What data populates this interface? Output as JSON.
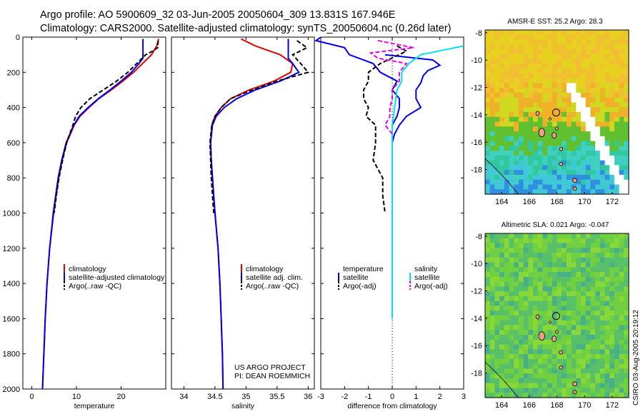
{
  "title_line1": "Argo profile: AO 5900609_32 03-Jun-2005 20050604_309 13.831S 167.946E",
  "title_line2": "Climatology: CARS2000. Satellite-adjusted climatology: synTS_20050604.nc (0.26d later)",
  "credit_line1": "US ARGO PROJECT",
  "credit_line2": "PI: DEAN ROEMMICH",
  "side_stamp": "CSIRO 03-Aug-2005 20:19:12",
  "colors": {
    "climatology": "#e00000",
    "satellite": "#0000ee",
    "argo": "#000000",
    "sal_sat": "#00e0f0",
    "sal_argo": "#ee00ee"
  },
  "chart_data": [
    {
      "type": "line",
      "name": "temperature-profile",
      "xlabel": "temperature",
      "ylabel": "",
      "xlim": [
        -2,
        30
      ],
      "ylim": [
        2000,
        0
      ],
      "xticks": [
        0,
        10,
        20
      ],
      "yticks": [
        0,
        200,
        400,
        600,
        800,
        1000,
        1200,
        1400,
        1600,
        1800,
        2000
      ],
      "legend": [
        "climatology",
        "satellite-adjusted climatology",
        "Argo(..raw -QC)"
      ],
      "series": [
        {
          "name": "climatology",
          "style": "solid",
          "color": "#e00000",
          "depth": [
            10,
            50,
            100,
            150,
            200,
            250,
            300,
            350,
            400,
            450,
            500,
            600,
            700,
            800,
            1000,
            1200,
            1400,
            1600,
            1800,
            2000
          ],
          "value": [
            28.4,
            28.0,
            26.8,
            24.8,
            22.8,
            20.4,
            17.8,
            15.0,
            12.8,
            10.8,
            9.5,
            7.8,
            6.8,
            6.0,
            4.9,
            4.0,
            3.4,
            3.0,
            2.7,
            2.4
          ]
        },
        {
          "name": "satellite-adjusted climatology",
          "style": "solid",
          "color": "#0000ee",
          "depth": [
            10,
            120,
            150,
            200,
            250,
            300,
            350,
            400,
            450,
            500,
            600,
            700,
            800,
            1000,
            1200,
            1400,
            1600,
            1800,
            2000
          ],
          "value": [
            24.9,
            24.9,
            24.0,
            22.3,
            20.0,
            17.5,
            14.9,
            12.6,
            10.6,
            9.4,
            7.7,
            6.7,
            5.9,
            4.8,
            4.0,
            3.4,
            3.0,
            2.7,
            2.4
          ]
        },
        {
          "name": "Argo(..raw -QC)",
          "style": "dashed",
          "color": "#000000",
          "depth": [
            20,
            60,
            80,
            100,
            150,
            200,
            250,
            300,
            350,
            400,
            450,
            500,
            600,
            700,
            800,
            900,
            1000
          ],
          "value": [
            28.3,
            28.2,
            27.0,
            25.5,
            23.5,
            21.5,
            19.0,
            16.0,
            13.0,
            11.0,
            9.8,
            9.2,
            7.8,
            6.9,
            6.1,
            5.5,
            5.0
          ]
        }
      ]
    },
    {
      "type": "line",
      "name": "salinity-profile",
      "xlabel": "salinity",
      "xlim": [
        33.8,
        36.1
      ],
      "ylim": [
        2000,
        0
      ],
      "xticks": [
        34,
        34.5,
        35,
        35.5,
        36
      ],
      "legend": [
        "climatology",
        "satellite adj. clim.",
        "Argo(..raw -QC)"
      ],
      "series": [
        {
          "name": "climatology",
          "style": "solid",
          "color": "#e00000",
          "depth": [
            10,
            50,
            100,
            150,
            200,
            250,
            300,
            350,
            400,
            450,
            500,
            600,
            700,
            800,
            1000,
            1200,
            1400,
            1600,
            1800,
            2000
          ],
          "value": [
            34.92,
            35.15,
            35.55,
            35.75,
            35.72,
            35.45,
            35.05,
            34.75,
            34.6,
            34.5,
            34.45,
            34.43,
            34.44,
            34.46,
            34.5,
            34.55,
            34.58,
            34.6,
            34.62,
            34.63
          ]
        },
        {
          "name": "satellite adj. clim.",
          "style": "solid",
          "color": "#0000ee",
          "depth": [
            10,
            120,
            150,
            200,
            250,
            300,
            350,
            400,
            450,
            500,
            600,
            700,
            800,
            1000,
            1200,
            1400,
            1600,
            1800,
            2000
          ],
          "value": [
            35.68,
            35.68,
            35.75,
            35.85,
            35.55,
            35.15,
            34.85,
            34.65,
            34.52,
            34.46,
            34.43,
            34.44,
            34.46,
            34.5,
            34.55,
            34.58,
            34.6,
            34.62,
            34.63
          ]
        },
        {
          "name": "Argo(..raw -QC)",
          "style": "dashed",
          "color": "#000000",
          "depth": [
            20,
            60,
            100,
            150,
            200,
            250,
            300,
            350,
            400,
            450,
            500,
            600,
            700,
            800,
            900,
            1000
          ],
          "value": [
            35.82,
            35.98,
            35.75,
            35.88,
            36.0,
            35.5,
            35.1,
            34.75,
            34.6,
            34.5,
            34.45,
            34.42,
            34.43,
            34.44,
            34.46,
            34.48
          ]
        }
      ]
    },
    {
      "type": "line",
      "name": "difference-profile",
      "xlabel": "difference from climatology",
      "xlim": [
        -3,
        3
      ],
      "ylim": [
        2000,
        0
      ],
      "xticks": [
        -3,
        -2,
        -1,
        0,
        1,
        2,
        3
      ],
      "legend": [
        "temperature",
        "satellite",
        "Argo(-adj)",
        "salinity",
        "satellite",
        "Argo(-adj)"
      ],
      "series": [
        {
          "name": "temperature satellite",
          "style": "solid",
          "color": "#0000ee",
          "depth": [
            0,
            20,
            60,
            100,
            150,
            200,
            250,
            300,
            350,
            400,
            450,
            500,
            600,
            800,
            1000,
            1200,
            1400,
            1600
          ],
          "value": [
            -3.0,
            -3.2,
            -2.0,
            -1.8,
            -0.8,
            -0.5,
            0.2,
            0.0,
            0.3,
            0.3,
            0.2,
            0.0,
            0.0,
            0.0,
            0.0,
            0.0,
            0.0,
            0.0
          ]
        },
        {
          "name": "temperature satellite upper",
          "style": "solid",
          "color": "#0000ee",
          "depth": [
            100,
            130,
            160,
            190,
            220,
            260,
            300,
            350,
            400,
            450,
            500,
            550,
            600
          ],
          "value": [
            -0.3,
            1.7,
            2.0,
            1.5,
            1.3,
            1.2,
            1.0,
            1.0,
            1.2,
            0.6,
            0.3,
            0.1,
            0.0
          ]
        },
        {
          "name": "temperature Argo(-adj)",
          "style": "dashed",
          "color": "#000000",
          "depth": [
            50,
            80,
            150,
            200,
            250,
            300,
            350,
            400,
            450,
            500,
            600,
            700,
            800,
            900,
            1000
          ],
          "value": [
            0.2,
            0.6,
            -0.5,
            -1.0,
            -1.0,
            -1.2,
            -1.2,
            -1.0,
            -1.1,
            -0.7,
            -0.7,
            -0.8,
            -0.4,
            -0.4,
            -0.3
          ]
        },
        {
          "name": "salinity satellite",
          "style": "solid",
          "color": "#00e0f0",
          "depth": [
            50,
            100,
            150,
            200,
            250,
            300,
            400,
            500,
            600,
            700,
            800,
            900,
            1000,
            1100,
            1200,
            1400,
            1600
          ],
          "value": [
            3.0,
            1.2,
            0.7,
            0.4,
            0.4,
            0.2,
            0.1,
            0.0,
            0.0,
            0.0,
            0.0,
            0.0,
            0.0,
            0.0,
            0.0,
            0.0,
            0.0
          ]
        },
        {
          "name": "salinity Argo(-adj)",
          "style": "dashed",
          "color": "#ee00ee",
          "depth": [
            20,
            60,
            90,
            120,
            150,
            200,
            250,
            300,
            350,
            400,
            450,
            500,
            550
          ],
          "value": [
            -0.6,
            0.9,
            -0.9,
            -0.6,
            0.6,
            0.3,
            0.3,
            0.0,
            0.0,
            -0.1,
            -0.1,
            -0.3,
            0.0
          ]
        }
      ]
    },
    {
      "type": "heatmap",
      "name": "sst-map",
      "title": "AMSR-E SST: 25.2 Argo: 28.3",
      "xticks": [
        164,
        166,
        168,
        170,
        172
      ],
      "yticks": [
        -8,
        -10,
        -12,
        -14,
        -16,
        -18
      ],
      "xlim": [
        162.8,
        173.2
      ],
      "ylim": [
        -19.8,
        -7.8
      ],
      "float_position": [
        167.946,
        -13.831
      ]
    },
    {
      "type": "heatmap",
      "name": "sla-map",
      "title": "Altimetric SLA: 0.021 Argo: -0.047",
      "xticks": [
        164,
        166,
        168,
        170,
        172
      ],
      "yticks": [
        -8,
        -10,
        -12,
        -14,
        -16,
        -18
      ],
      "xlim": [
        162.8,
        173.2
      ],
      "ylim": [
        -19.8,
        -7.8
      ],
      "float_position": [
        167.946,
        -13.831
      ]
    }
  ]
}
